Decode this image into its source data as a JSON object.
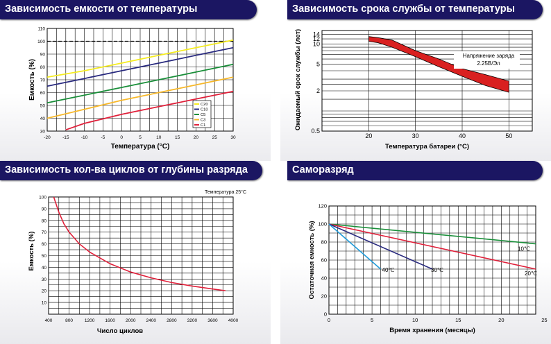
{
  "colors": {
    "banner": "#1b1662",
    "grid": "#000000",
    "red": "#e0203a",
    "blue": "#2a2b7f",
    "green": "#1a8f3a",
    "yellow": "#f5ec20",
    "orange": "#f7b82a",
    "cyan": "#1f9ad8",
    "band": "#d92020"
  },
  "panels": [
    {
      "title": "Зависимость емкости от температуры"
    },
    {
      "title": "Зависимость срока службы от температуры"
    },
    {
      "title": "Зависимость кол-ва циклов от глубины разряда"
    },
    {
      "title": "Саморазряд"
    }
  ],
  "chart_data": [
    {
      "type": "line",
      "title": "Зависимость емкости от температуры",
      "xlabel": "Температура (°C)",
      "ylabel": "Емкость (%)",
      "xlim": [
        -20,
        30
      ],
      "ylim": [
        30,
        110
      ],
      "x_ticks": [
        "-20",
        "-15",
        "-10",
        "-5",
        "0",
        "5",
        "10",
        "15",
        "20",
        "25",
        "30"
      ],
      "y_ticks": [
        "30",
        "40",
        "50",
        "60",
        "70",
        "80",
        "90",
        "100",
        "110"
      ],
      "reference_line": 100,
      "legend_position": "right",
      "legend": [
        "C20",
        "C10",
        "C5",
        "C3",
        "C1"
      ],
      "series": [
        {
          "name": "C20",
          "color": "#f5ec20",
          "points": [
            [
              -20,
              72
            ],
            [
              -10,
              77
            ],
            [
              0,
              83
            ],
            [
              10,
              89
            ],
            [
              20,
              95
            ],
            [
              30,
              101
            ]
          ]
        },
        {
          "name": "C10",
          "color": "#2a2b7f",
          "points": [
            [
              -20,
              65
            ],
            [
              -10,
              71
            ],
            [
              0,
              77
            ],
            [
              10,
              83
            ],
            [
              20,
              89
            ],
            [
              30,
              95
            ]
          ]
        },
        {
          "name": "C5",
          "color": "#1a8f3a",
          "points": [
            [
              -20,
              52
            ],
            [
              -10,
              58
            ],
            [
              0,
              64
            ],
            [
              10,
              70
            ],
            [
              20,
              76
            ],
            [
              30,
              82
            ]
          ]
        },
        {
          "name": "C3",
          "color": "#f7b82a",
          "points": [
            [
              -20,
              40
            ],
            [
              -10,
              47
            ],
            [
              0,
              54
            ],
            [
              10,
              60
            ],
            [
              20,
              66
            ],
            [
              30,
              72
            ]
          ]
        },
        {
          "name": "C1",
          "color": "#e0203a",
          "points": [
            [
              -15,
              31
            ],
            [
              -10,
              36
            ],
            [
              0,
              43
            ],
            [
              10,
              49
            ],
            [
              20,
              55
            ],
            [
              30,
              61
            ]
          ]
        }
      ]
    },
    {
      "type": "area",
      "title": "Зависимость срока службы от температуры",
      "xlabel": "Температура батареи (°C)",
      "ylabel": "Ожидаемый срок службы (лет)",
      "xlim": [
        10,
        55
      ],
      "ylim": [
        0.5,
        16
      ],
      "y_scale": "log",
      "x_ticks": [
        "20",
        "30",
        "40",
        "50"
      ],
      "y_ticks": [
        "0.5",
        "2",
        "5",
        "10",
        "12",
        "14"
      ],
      "annotation": [
        "Напряжение заряда",
        "2.25В/Эл"
      ],
      "band": {
        "x": [
          20,
          22,
          25,
          30,
          35,
          40,
          45,
          50
        ],
        "upper": [
          13,
          12.5,
          11.5,
          8,
          6,
          4.3,
          3.5,
          2.8
        ],
        "lower": [
          11,
          10.5,
          9,
          6.5,
          4.6,
          3.3,
          2.4,
          1.9
        ]
      }
    },
    {
      "type": "line",
      "title": "Зависимость кол-ва циклов от глубины разряда",
      "xlabel": "Число циклов",
      "ylabel": "Емкость (%)",
      "xlim": [
        400,
        4000
      ],
      "ylim": [
        0,
        100
      ],
      "x_ticks": [
        "400",
        "800",
        "1200",
        "1600",
        "2000",
        "2400",
        "2800",
        "3200",
        "3600",
        "4000"
      ],
      "y_ticks": [
        "10",
        "20",
        "30",
        "40",
        "50",
        "60",
        "70",
        "80",
        "90",
        "100"
      ],
      "annotation": "Температура 25°C",
      "series": [
        {
          "name": "",
          "color": "#e0203a",
          "points": [
            [
              500,
              100
            ],
            [
              600,
              87
            ],
            [
              700,
              77
            ],
            [
              800,
              70
            ],
            [
              1000,
              60
            ],
            [
              1200,
              53
            ],
            [
              1600,
              43
            ],
            [
              2000,
              36
            ],
            [
              2400,
              31
            ],
            [
              2800,
              27
            ],
            [
              3200,
              24
            ],
            [
              3600,
              21.5
            ],
            [
              3850,
              20
            ]
          ]
        }
      ]
    },
    {
      "type": "line",
      "title": "Саморазряд",
      "xlabel": "Время хранения (месяцы)",
      "ylabel": "Остаточная емкость (%)",
      "xlim": [
        0,
        24
      ],
      "ylim": [
        0,
        120
      ],
      "x_ticks": [
        "0",
        "5",
        "10",
        "15",
        "20",
        "25"
      ],
      "y_ticks": [
        "0",
        "20",
        "40",
        "60",
        "80",
        "100",
        "120"
      ],
      "series": [
        {
          "name": "10℃",
          "color": "#1a8f3a",
          "points": [
            [
              0,
              100
            ],
            [
              24,
              78
            ]
          ]
        },
        {
          "name": "20℃",
          "color": "#e0203a",
          "points": [
            [
              0,
              100
            ],
            [
              24,
              50
            ]
          ]
        },
        {
          "name": "30℃",
          "color": "#2a2b7f",
          "points": [
            [
              0,
              100
            ],
            [
              12,
              50
            ]
          ]
        },
        {
          "name": "40℃",
          "color": "#1f9ad8",
          "points": [
            [
              0,
              100
            ],
            [
              6,
              50
            ]
          ]
        }
      ]
    }
  ]
}
